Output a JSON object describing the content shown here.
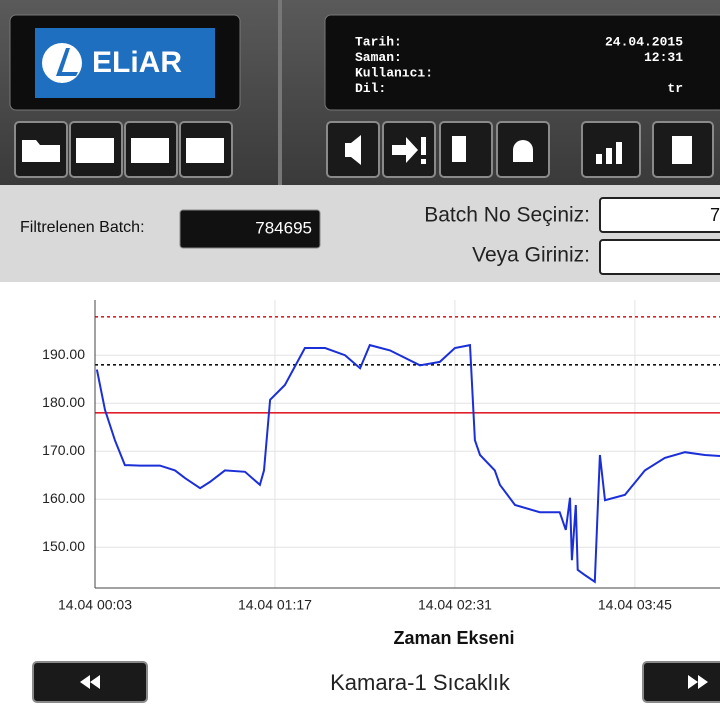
{
  "header": {
    "logo": "ELiAR",
    "info": [
      {
        "label": "Tarih:",
        "value": "24.04.2015"
      },
      {
        "label": "Saman:",
        "value": "12:31"
      },
      {
        "label": "Kullanıcı:"
      },
      {
        "label": "Dil:",
        "value": "tr"
      }
    ]
  },
  "filter": {
    "label": "Filtrelenen Batch:",
    "value": "784695",
    "select_label": "Batch No Seçiniz:",
    "select_value": "7",
    "enter_label": "Veya Giriniz:"
  },
  "chart_data": {
    "type": "line",
    "title": "Kamara-1 Sıcaklık",
    "x_label": "Zaman Ekseni",
    "color": "#1a2fd8",
    "grid": true,
    "x": [
      3.8,
      7.1,
      11.2,
      15.3,
      21.5,
      29.7,
      35.9,
      40,
      46.2,
      50.3,
      56.4,
      64.7,
      70.8,
      72.5,
      75,
      81.1,
      89.3,
      97.6,
      105.8,
      112,
      116,
      124.3,
      136.6,
      144.8,
      151,
      157.2,
      159.2,
      161.3,
      167.4,
      169.5,
      175.7,
      185.9,
      194.1,
      196.6,
      198.3,
      199.1,
      200.7,
      201.5,
      204.4,
      208.5,
      210.6,
      212.7,
      220.9,
      229.1,
      237.3,
      245.6,
      253.8,
      260
    ],
    "values": [
      187,
      178.6,
      172.3,
      167.1,
      167,
      167,
      166,
      164.4,
      162.3,
      163.6,
      166,
      165.7,
      163,
      166,
      180.7,
      183.8,
      191.5,
      191.5,
      190,
      187.3,
      192.1,
      191,
      187.9,
      188.6,
      191.5,
      192.1,
      172.3,
      169.2,
      166,
      163,
      158.8,
      157.3,
      157.3,
      153.6,
      160.3,
      147.3,
      158.8,
      145.3,
      144.2,
      142.8,
      169.2,
      159.8,
      160.9,
      166,
      168.6,
      169.8,
      169.2,
      169
    ],
    "xlim": [
      3,
      260
    ],
    "xticks": [
      {
        "value": 3,
        "label": "14.04 00:03"
      },
      {
        "value": 77,
        "label": "14.04 01:17"
      },
      {
        "value": 151,
        "label": "14.04 02:31"
      },
      {
        "value": 225,
        "label": "14.04 03:45"
      }
    ],
    "ylim": [
      141.5,
      201.5
    ],
    "yticks": [
      {
        "value": 150,
        "label": "150.00"
      },
      {
        "value": 160,
        "label": "160.00"
      },
      {
        "value": 170,
        "label": "170.00"
      },
      {
        "value": 180,
        "label": "180.00"
      },
      {
        "value": 190,
        "label": "190.00"
      }
    ],
    "reference_lines": [
      {
        "value": 198,
        "color": "#e0202a",
        "dashed": true
      },
      {
        "value": 188,
        "color": "#111111",
        "dashed": true
      },
      {
        "value": 178,
        "color": "#e0202a",
        "dashed": false
      }
    ]
  }
}
